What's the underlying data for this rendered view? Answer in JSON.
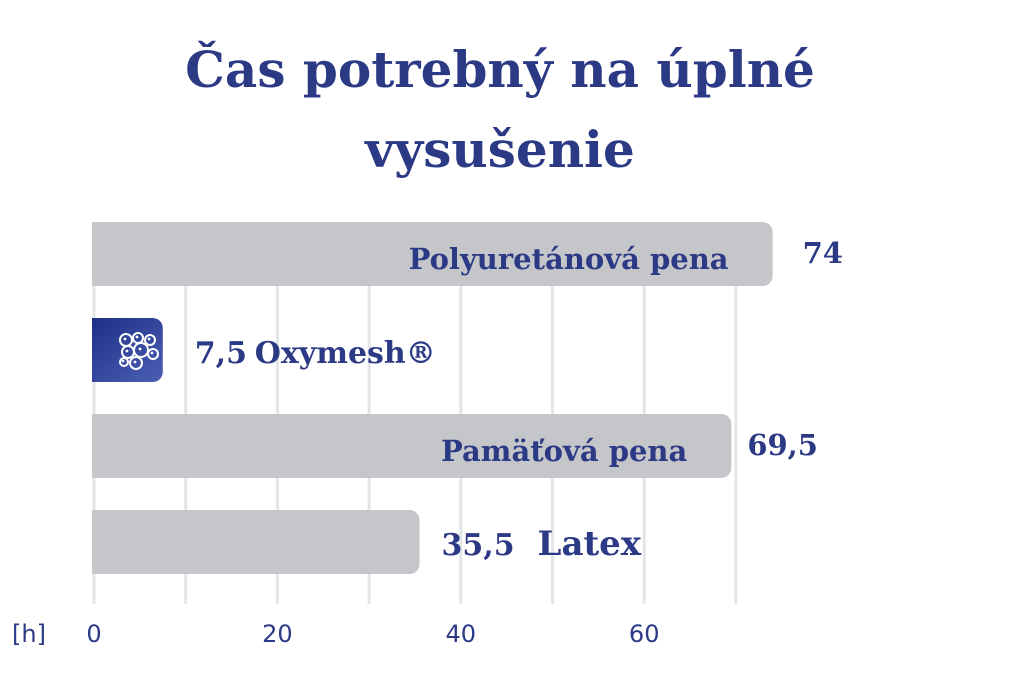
{
  "chart_data": {
    "type": "bar",
    "orientation": "horizontal",
    "title_lines": [
      "Čas potrebný na úplné",
      "vysušenie"
    ],
    "unit_label": "[h]",
    "categories": [
      "Polyuretánová pena",
      "Oxymesh®",
      "Pamäťová pena",
      "Latex"
    ],
    "values": [
      74,
      7.5,
      69.5,
      35.5
    ],
    "value_labels": [
      "74",
      "7,5",
      "69,5",
      "35,5"
    ],
    "highlight_index": 1,
    "x_ticks": [
      0,
      20,
      40,
      60
    ],
    "gridline_step": 10,
    "xlim": [
      0,
      75
    ],
    "grid": true,
    "colors": {
      "bar": "#c5c6ca",
      "highlight_start": "#1b2c82",
      "highlight_end": "#4b5fb5",
      "grid": "#e4e5e8",
      "text": "#2c3a86"
    },
    "icon": "oxygen-bubbles-icon"
  }
}
